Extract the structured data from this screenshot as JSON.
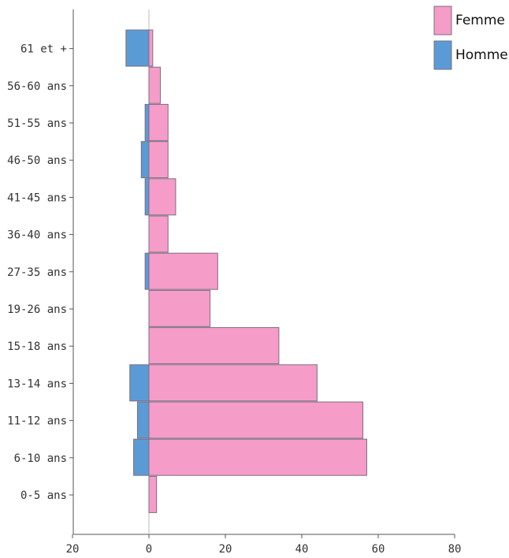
{
  "chart_data": {
    "type": "bar",
    "orientation": "horizontal",
    "stacking": "diverging",
    "categories": [
      "61 et +",
      "56-60 ans",
      "51-55 ans",
      "46-50 ans",
      "41-45 ans",
      "36-40 ans",
      "27-35 ans",
      "19-26 ans",
      "15-18 ans",
      "13-14 ans",
      "11-12 ans",
      "6-10 ans",
      "0-5 ans"
    ],
    "series": [
      {
        "name": "Femme",
        "color": "#f59cc9",
        "values": [
          1,
          3,
          5,
          5,
          7,
          5,
          18,
          16,
          34,
          44,
          56,
          57,
          2
        ]
      },
      {
        "name": "Homme",
        "color": "#5b9bd5",
        "values": [
          -6,
          0,
          -1,
          -2,
          -1,
          0,
          -1,
          0,
          0,
          -5,
          -3,
          -4,
          0
        ]
      }
    ],
    "x_ticks": [
      -20,
      0,
      20,
      40,
      60,
      80
    ],
    "x_tick_labels": [
      "20",
      "0",
      "20",
      "40",
      "60",
      "80"
    ],
    "xlim": [
      -20,
      80
    ],
    "title": "",
    "xlabel": "",
    "ylabel": "",
    "legend": "top-right",
    "grid": false
  }
}
